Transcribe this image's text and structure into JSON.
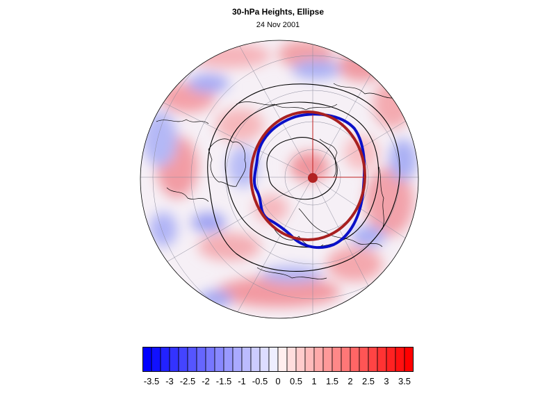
{
  "title": "30-hPa Heights, Ellipse",
  "subtitle": "24 Nov 2001",
  "colorbar": {
    "labels": [
      "-3.5",
      "-3",
      "-2.5",
      "-2",
      "-1.5",
      "-1",
      "-0.5",
      "0",
      "0.5",
      "1",
      "1.5",
      "2",
      "2.5",
      "3",
      "3.5"
    ],
    "min": -3.75,
    "max": 3.75,
    "step": 0.25,
    "neg_color": "#0000ff",
    "pos_color": "#ff0000",
    "mid_color": "#ffffff"
  },
  "colors": {
    "vortex_edge": "#0a10c8",
    "fitted_ellipse": "#a82020",
    "ellipse_center": "#b22222",
    "height_contours": "#000000",
    "grid_lines": "#8a8a9a",
    "coastlines": "#000000"
  }
}
